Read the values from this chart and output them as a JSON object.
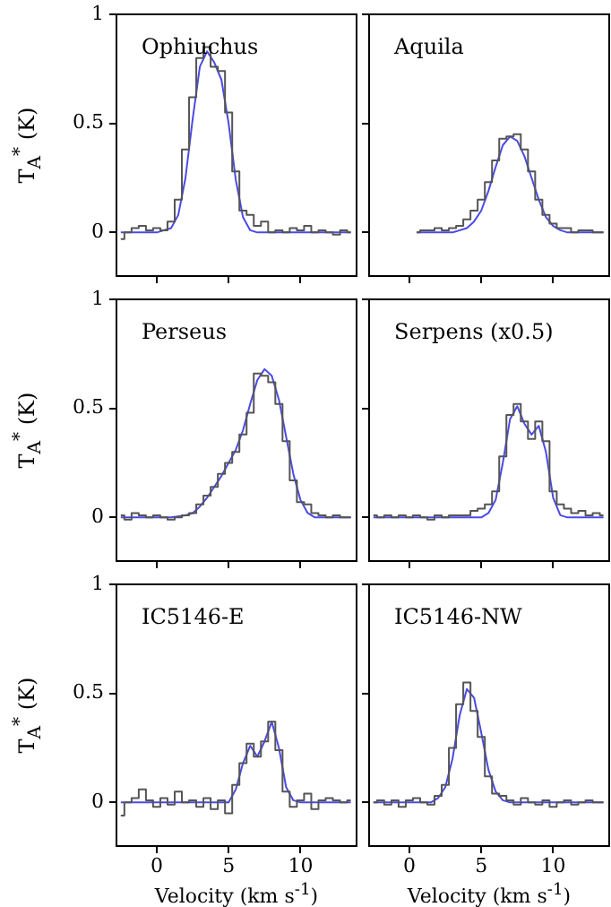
{
  "chart_data": [
    {
      "type": "line",
      "title": "Ophiuchus",
      "ylabel": "T$_{A}$$^{*}$ (K)",
      "xlim": [
        -2.8,
        13.9
      ],
      "ylim": [
        -0.2,
        1
      ],
      "xticks": [
        0,
        5,
        10
      ],
      "yticks": [
        0,
        0.5,
        1
      ],
      "tick_labels": "y",
      "series": [
        {
          "type": "step",
          "color": "#555555",
          "x": [
            -2.5,
            -2,
            -1.5,
            -1,
            -0.5,
            0,
            0.5,
            1,
            1.5,
            2,
            2.5,
            3,
            3.5,
            4,
            4.5,
            5,
            5.5,
            6,
            6.5,
            7,
            7.5,
            8,
            8.5,
            9,
            9.5,
            10,
            10.5,
            11,
            11.5,
            12,
            12.5,
            13,
            13.5
          ],
          "values": [
            -0.03,
            0,
            0.02,
            0.03,
            0.01,
            0.02,
            0.01,
            0.05,
            0.15,
            0.38,
            0.62,
            0.8,
            0.85,
            0.76,
            0.74,
            0.55,
            0.28,
            0.1,
            0.08,
            0.03,
            0.05,
            0,
            0.01,
            0,
            0.02,
            0.01,
            0.03,
            0,
            0.01,
            0,
            -0.01,
            0.01,
            0
          ]
        },
        {
          "type": "line",
          "color": "#4a4ae6",
          "x": [
            -2.5,
            0,
            1,
            1.5,
            2,
            2.5,
            3,
            3.5,
            4,
            4.5,
            5,
            5.5,
            6,
            6.5,
            7,
            13.5
          ],
          "values": [
            0,
            0,
            0.02,
            0.08,
            0.25,
            0.52,
            0.76,
            0.83,
            0.78,
            0.7,
            0.5,
            0.24,
            0.07,
            0.01,
            0,
            0
          ]
        }
      ]
    },
    {
      "type": "line",
      "title": "Aquila",
      "xlim": [
        -2.8,
        13.9
      ],
      "ylim": [
        -0.2,
        1
      ],
      "xticks": [
        0,
        5,
        10
      ],
      "yticks": [
        0,
        0.5,
        1
      ],
      "tick_labels": false,
      "series": [
        {
          "type": "step",
          "color": "#555555",
          "x": [
            0.5,
            1,
            1.5,
            2,
            2.5,
            3,
            3.5,
            4,
            4.5,
            5,
            5.5,
            6,
            6.5,
            7,
            7.5,
            8,
            8.5,
            9,
            9.5,
            10,
            10.5,
            11,
            11.5,
            12,
            12.5,
            13,
            13.5
          ],
          "values": [
            0,
            0.01,
            0.01,
            0.02,
            0.01,
            0.02,
            0.03,
            0.06,
            0.1,
            0.15,
            0.23,
            0.33,
            0.43,
            0.44,
            0.45,
            0.38,
            0.28,
            0.15,
            0.08,
            0.04,
            0.02,
            0.02,
            0,
            0.01,
            0.01,
            0,
            0
          ]
        },
        {
          "type": "line",
          "color": "#4a4ae6",
          "x": [
            0.5,
            3,
            4,
            4.5,
            5,
            5.5,
            6,
            6.5,
            7,
            7.5,
            8,
            8.5,
            9,
            9.5,
            10,
            10.5,
            11,
            13.5
          ],
          "values": [
            0,
            0,
            0.02,
            0.05,
            0.1,
            0.19,
            0.3,
            0.4,
            0.44,
            0.42,
            0.35,
            0.25,
            0.15,
            0.07,
            0.03,
            0.01,
            0,
            0
          ]
        }
      ]
    },
    {
      "type": "line",
      "title": "Perseus",
      "ylabel": "T$_{A}$$^{*}$ (K)",
      "xlim": [
        -2.8,
        13.9
      ],
      "ylim": [
        -0.2,
        1
      ],
      "xticks": [
        0,
        5,
        10
      ],
      "yticks": [
        0,
        0.5,
        1
      ],
      "tick_labels": "y",
      "series": [
        {
          "type": "step",
          "color": "#555555",
          "x": [
            -2.5,
            -2,
            -1.5,
            -1,
            -0.5,
            0,
            0.5,
            1,
            1.5,
            2,
            2.5,
            3,
            3.5,
            4,
            4.5,
            5,
            5.5,
            6,
            6.5,
            7,
            7.5,
            8,
            8.5,
            9,
            9.5,
            10,
            10.5,
            11,
            11.5,
            12,
            12.5,
            13,
            13.5
          ],
          "values": [
            0.01,
            -0.01,
            0.02,
            0.01,
            0,
            0.01,
            0,
            -0.01,
            0,
            0.01,
            0.02,
            0.06,
            0.1,
            0.14,
            0.2,
            0.25,
            0.3,
            0.38,
            0.48,
            0.66,
            0.65,
            0.62,
            0.52,
            0.35,
            0.17,
            0.07,
            0.06,
            0.02,
            0.01,
            0,
            0.01,
            0,
            0
          ]
        },
        {
          "type": "line",
          "color": "#4a4ae6",
          "x": [
            -2.5,
            1,
            2,
            2.5,
            3,
            3.5,
            4,
            4.5,
            5,
            5.5,
            6,
            6.5,
            7,
            7.5,
            8,
            8.5,
            9,
            9.5,
            10,
            10.5,
            11,
            13.5
          ],
          "values": [
            0,
            0,
            0.01,
            0.02,
            0.05,
            0.09,
            0.14,
            0.19,
            0.25,
            0.31,
            0.4,
            0.52,
            0.63,
            0.68,
            0.65,
            0.54,
            0.37,
            0.2,
            0.08,
            0.02,
            0,
            0
          ]
        }
      ]
    },
    {
      "type": "line",
      "title": "Serpens (x0.5)",
      "xlim": [
        -2.8,
        13.9
      ],
      "ylim": [
        -0.2,
        1
      ],
      "xticks": [
        0,
        5,
        10
      ],
      "yticks": [
        0,
        0.5,
        1
      ],
      "tick_labels": false,
      "series": [
        {
          "type": "step",
          "color": "#555555",
          "x": [
            -2.5,
            -2,
            -1.5,
            -1,
            -0.5,
            0,
            0.5,
            1,
            1.5,
            2,
            2.5,
            3,
            3.5,
            4,
            4.5,
            5,
            5.5,
            6,
            6.5,
            7,
            7.5,
            8,
            8.5,
            9,
            9.5,
            10,
            10.5,
            11,
            11.5,
            12,
            12.5,
            13,
            13.5
          ],
          "values": [
            0.01,
            0,
            0.01,
            0,
            0.01,
            0,
            0.01,
            0,
            -0.01,
            0.01,
            0,
            0.01,
            0.01,
            0.01,
            0.03,
            0.04,
            0.06,
            0.12,
            0.28,
            0.47,
            0.52,
            0.44,
            0.36,
            0.44,
            0.35,
            0.12,
            0.06,
            0.04,
            0.02,
            0.03,
            0.01,
            0.02,
            0.01
          ]
        },
        {
          "type": "line",
          "color": "#4a4ae6",
          "x": [
            -2.5,
            5,
            5.5,
            6,
            6.5,
            7,
            7.5,
            8,
            8.5,
            9,
            9.5,
            10,
            10.5,
            11,
            13.5
          ],
          "values": [
            0,
            0,
            0.02,
            0.08,
            0.25,
            0.45,
            0.51,
            0.43,
            0.38,
            0.42,
            0.3,
            0.09,
            0.01,
            0,
            0
          ]
        }
      ]
    },
    {
      "type": "line",
      "title": "IC5146-E",
      "xlabel": "Velocity (km s$^{-1}$)",
      "ylabel": "T$_{A}$$^{*}$ (K)",
      "xlim": [
        -2.8,
        13.9
      ],
      "ylim": [
        -0.2,
        1
      ],
      "xticks": [
        0,
        5,
        10
      ],
      "yticks": [
        0,
        0.5,
        1
      ],
      "series": [
        {
          "type": "step",
          "color": "#555555",
          "x": [
            -2.5,
            -2,
            -1.5,
            -1,
            -0.5,
            0,
            0.5,
            1,
            1.5,
            2,
            2.5,
            3,
            3.5,
            4,
            4.5,
            5,
            5.5,
            6,
            6.5,
            7,
            7.5,
            8,
            8.5,
            9,
            9.5,
            10,
            10.5,
            11,
            11.5,
            12,
            12.5,
            13,
            13.5
          ],
          "values": [
            -0.06,
            0,
            0.02,
            0.06,
            0.01,
            -0.02,
            0.02,
            -0.01,
            0.05,
            0,
            0.01,
            -0.02,
            0.02,
            -0.03,
            0.01,
            -0.05,
            0.08,
            0.18,
            0.27,
            0.21,
            0.28,
            0.37,
            0.24,
            0.05,
            -0.02,
            0.01,
            0.04,
            -0.03,
            0.01,
            0.02,
            0.01,
            0,
            0.01
          ]
        },
        {
          "type": "line",
          "color": "#4a4ae6",
          "x": [
            -2.5,
            5,
            5.5,
            6,
            6.5,
            7,
            7.5,
            8,
            8.5,
            9,
            9.5,
            10,
            13.5
          ],
          "values": [
            0,
            0,
            0.06,
            0.18,
            0.26,
            0.21,
            0.28,
            0.37,
            0.25,
            0.07,
            0.01,
            0,
            0
          ]
        }
      ]
    },
    {
      "type": "line",
      "title": "IC5146-NW",
      "xlabel": "Velocity (km s$^{-1}$)",
      "xlim": [
        -2.8,
        13.9
      ],
      "ylim": [
        -0.2,
        1
      ],
      "xticks": [
        0,
        5,
        10
      ],
      "yticks": [
        0,
        0.5,
        1
      ],
      "tick_labels": "x",
      "series": [
        {
          "type": "step",
          "color": "#555555",
          "x": [
            -2.5,
            -2,
            -1.5,
            -1,
            -0.5,
            0,
            0.5,
            1,
            1.5,
            2,
            2.5,
            3,
            3.5,
            4,
            4.5,
            5,
            5.5,
            6,
            6.5,
            7,
            7.5,
            8,
            8.5,
            9,
            9.5,
            10,
            10.5,
            11,
            11.5,
            12,
            12.5,
            13,
            13.5
          ],
          "values": [
            0,
            0.01,
            -0.01,
            0.01,
            -0.02,
            0.01,
            0.02,
            0,
            -0.01,
            0.03,
            0.08,
            0.25,
            0.45,
            0.55,
            0.42,
            0.3,
            0.12,
            0.04,
            0.03,
            0.01,
            -0.01,
            0.02,
            0,
            -0.01,
            0.01,
            -0.02,
            0,
            0.01,
            -0.01,
            0,
            0.01,
            0,
            0
          ]
        },
        {
          "type": "line",
          "color": "#4a4ae6",
          "x": [
            -2.5,
            1.5,
            2,
            2.5,
            3,
            3.5,
            4,
            4.5,
            5,
            5.5,
            6,
            6.5,
            7,
            13.5
          ],
          "values": [
            0,
            0,
            0.02,
            0.07,
            0.2,
            0.4,
            0.52,
            0.48,
            0.32,
            0.15,
            0.05,
            0.01,
            0,
            0
          ]
        }
      ]
    }
  ]
}
